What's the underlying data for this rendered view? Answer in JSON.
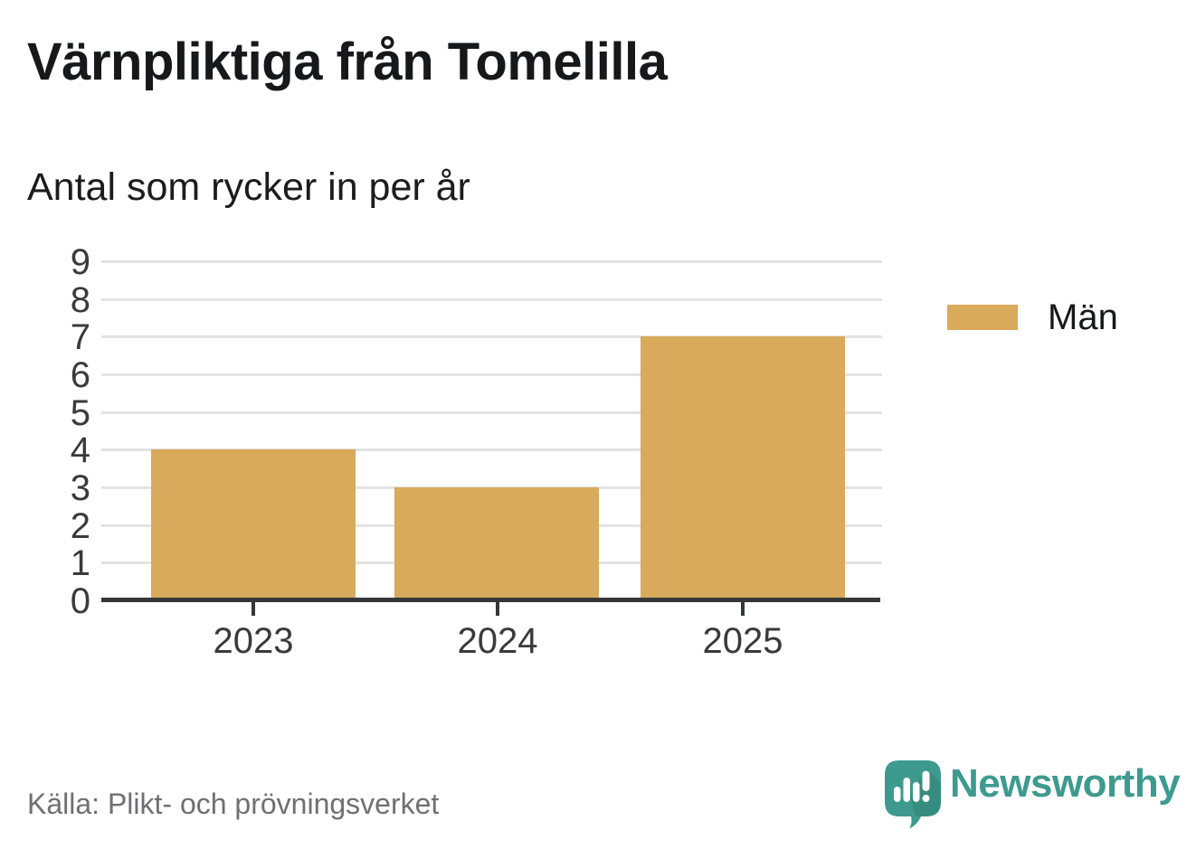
{
  "title": "Värnpliktiga från Tomelilla",
  "subtitle": "Antal som rycker in per år",
  "source": "Källa: Plikt- och prövningsverket",
  "brand": {
    "name": "Newsworthy",
    "teal": "#3E9A8E",
    "teal_dark": "#35897D",
    "mark_color": "#FFFFFF"
  },
  "colors": {
    "bar": "#D8AA5B",
    "axis": "#35383B",
    "grid": "#E3E3E3",
    "title_text": "#16181B",
    "label_text": "#3A3A3A",
    "muted_text": "#6F6F74"
  },
  "legend": [
    {
      "label": "Män",
      "color": "#D8AA5B"
    }
  ],
  "chart_data": {
    "type": "bar",
    "categories": [
      "2023",
      "2024",
      "2025"
    ],
    "series": [
      {
        "name": "Män",
        "values": [
          4,
          3,
          7
        ]
      }
    ],
    "title": "Värnpliktiga från Tomelilla",
    "subtitle": "Antal som rycker in per år",
    "xlabel": "",
    "ylabel": "",
    "ylim": [
      0,
      9
    ],
    "yticks": [
      0,
      1,
      2,
      3,
      4,
      5,
      6,
      7,
      8,
      9
    ],
    "grid": true,
    "legend_position": "right",
    "source": "Källa: Plikt- och prövningsverket"
  }
}
